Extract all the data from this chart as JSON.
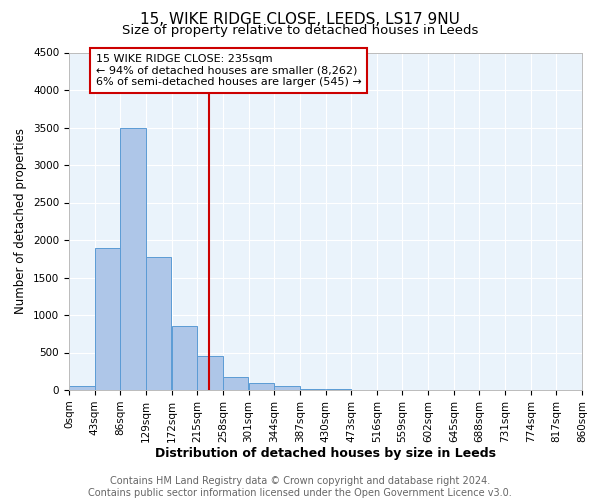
{
  "title1": "15, WIKE RIDGE CLOSE, LEEDS, LS17 9NU",
  "title2": "Size of property relative to detached houses in Leeds",
  "xlabel": "Distribution of detached houses by size in Leeds",
  "ylabel": "Number of detached properties",
  "bin_edges": [
    0,
    43,
    86,
    129,
    172,
    215,
    258,
    301,
    344,
    387,
    430,
    473,
    516,
    559,
    602,
    645,
    688,
    731,
    774,
    817,
    860
  ],
  "bar_heights": [
    50,
    1900,
    3500,
    1780,
    850,
    460,
    175,
    90,
    55,
    20,
    10,
    5,
    3,
    3,
    2,
    0,
    0,
    0,
    0,
    0
  ],
  "bar_color": "#aec6e8",
  "bar_edgecolor": "#5b9bd5",
  "vline_x": 235,
  "vline_color": "#cc0000",
  "annotation_line1": "15 WIKE RIDGE CLOSE: 235sqm",
  "annotation_line2": "← 94% of detached houses are smaller (8,262)",
  "annotation_line3": "6% of semi-detached houses are larger (545) →",
  "annotation_box_edgecolor": "#cc0000",
  "annotation_box_facecolor": "#ffffff",
  "ylim": [
    0,
    4500
  ],
  "yticks": [
    0,
    500,
    1000,
    1500,
    2000,
    2500,
    3000,
    3500,
    4000,
    4500
  ],
  "footer1": "Contains HM Land Registry data © Crown copyright and database right 2024.",
  "footer2": "Contains public sector information licensed under the Open Government Licence v3.0.",
  "plot_bg_color": "#eaf3fb",
  "fig_bg_color": "#ffffff",
  "grid_color": "#ffffff",
  "title1_fontsize": 11,
  "title2_fontsize": 9.5,
  "annotation_fontsize": 8,
  "xlabel_fontsize": 9,
  "ylabel_fontsize": 8.5,
  "footer_fontsize": 7,
  "tick_fontsize": 7.5
}
